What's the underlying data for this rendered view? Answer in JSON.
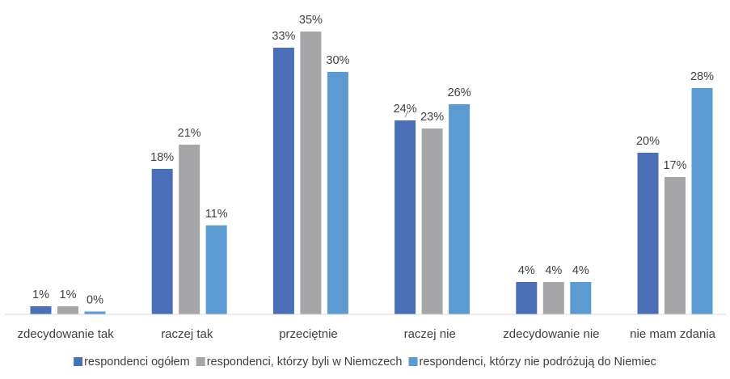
{
  "chart_data": {
    "type": "bar",
    "categories": [
      "zdecydowanie tak",
      "raczej tak",
      "przeciętnie",
      "raczej nie",
      "zdecydowanie nie",
      "nie mam zdania"
    ],
    "series": [
      {
        "name": "respondenci ogółem",
        "color": "#4a6fb6",
        "values": [
          1,
          18,
          33,
          24,
          4,
          20
        ],
        "labels": [
          "1%",
          "18%",
          "33%",
          "24%",
          "4%",
          "20%"
        ]
      },
      {
        "name": "respondenci, którzy byli w Niemczech",
        "color": "#a6a6a9",
        "values": [
          1,
          21,
          35,
          23,
          4,
          17
        ],
        "labels": [
          "1%",
          "21%",
          "35%",
          "23%",
          "4%",
          "17%"
        ]
      },
      {
        "name": "respondenci, którzy nie podróżują do Niemiec",
        "color": "#5b9bd1",
        "values": [
          0,
          11,
          30,
          26,
          4,
          28
        ],
        "labels": [
          "0%",
          "11%",
          "30%",
          "26%",
          "4%",
          "28%"
        ]
      }
    ],
    "ylim": [
      0,
      35
    ],
    "grid": false,
    "legend_position": "bottom",
    "axis_color": "#d9d9d9",
    "text_color": "#404040"
  }
}
